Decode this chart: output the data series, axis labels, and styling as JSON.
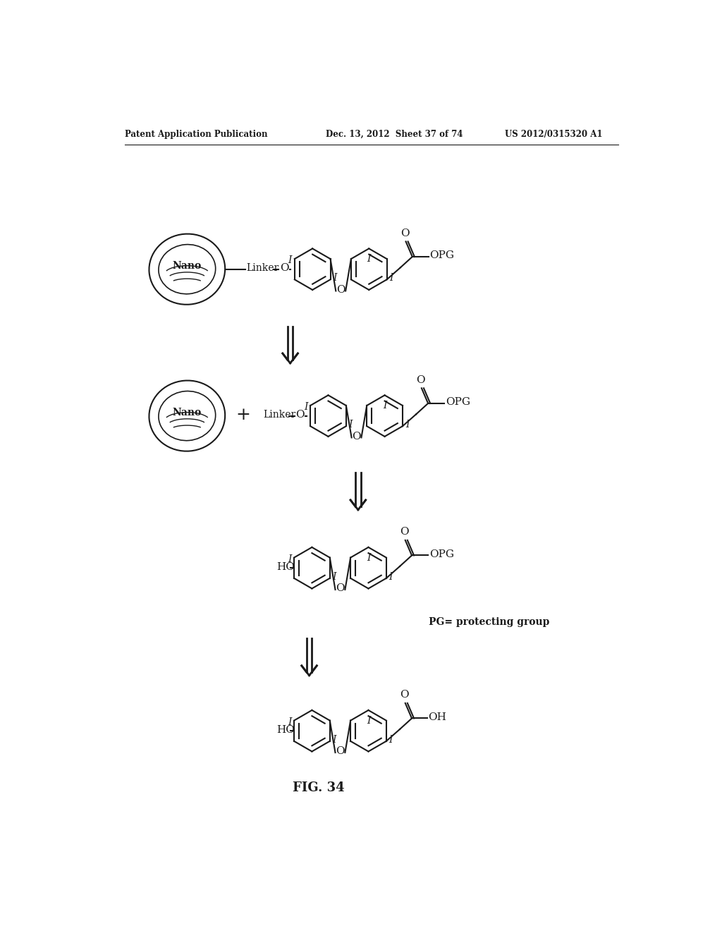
{
  "bg_color": "#ffffff",
  "header_left": "Patent Application Publication",
  "header_mid": "Dec. 13, 2012  Sheet 37 of 74",
  "header_right": "US 2012/0315320 A1",
  "fig_label": "FIG. 34",
  "pg_note": "PG= protecting group",
  "page_width": 10.24,
  "page_height": 13.2,
  "line_color": "#1a1a1a",
  "text_color": "#1a1a1a"
}
